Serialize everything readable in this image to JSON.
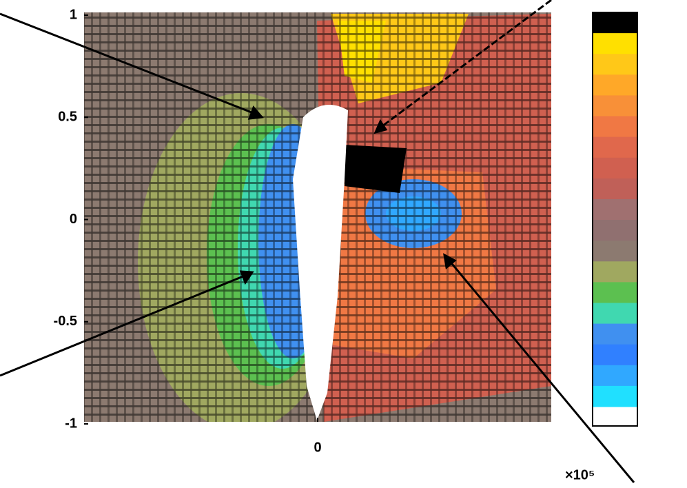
{
  "chart_data": {
    "type": "heatmap",
    "ylim": [
      -1,
      1
    ],
    "yticks": [
      -1,
      -0.5,
      0,
      0.5,
      1
    ],
    "xlim": [
      -1,
      1
    ],
    "xticks": [
      0
    ],
    "x_exponent_label": "×10⁵",
    "colorbar": {
      "colors": [
        "#000000",
        "#ffe000",
        "#ffc818",
        "#ffa828",
        "#f89038",
        "#f07844",
        "#e0684c",
        "#d06050",
        "#c06058",
        "#a07070",
        "#907070",
        "#8c7a70",
        "#a0a860",
        "#5cc050",
        "#40d8b0",
        "#4090f0",
        "#3080ff",
        "#30a8ff",
        "#20e0ff"
      ]
    }
  }
}
